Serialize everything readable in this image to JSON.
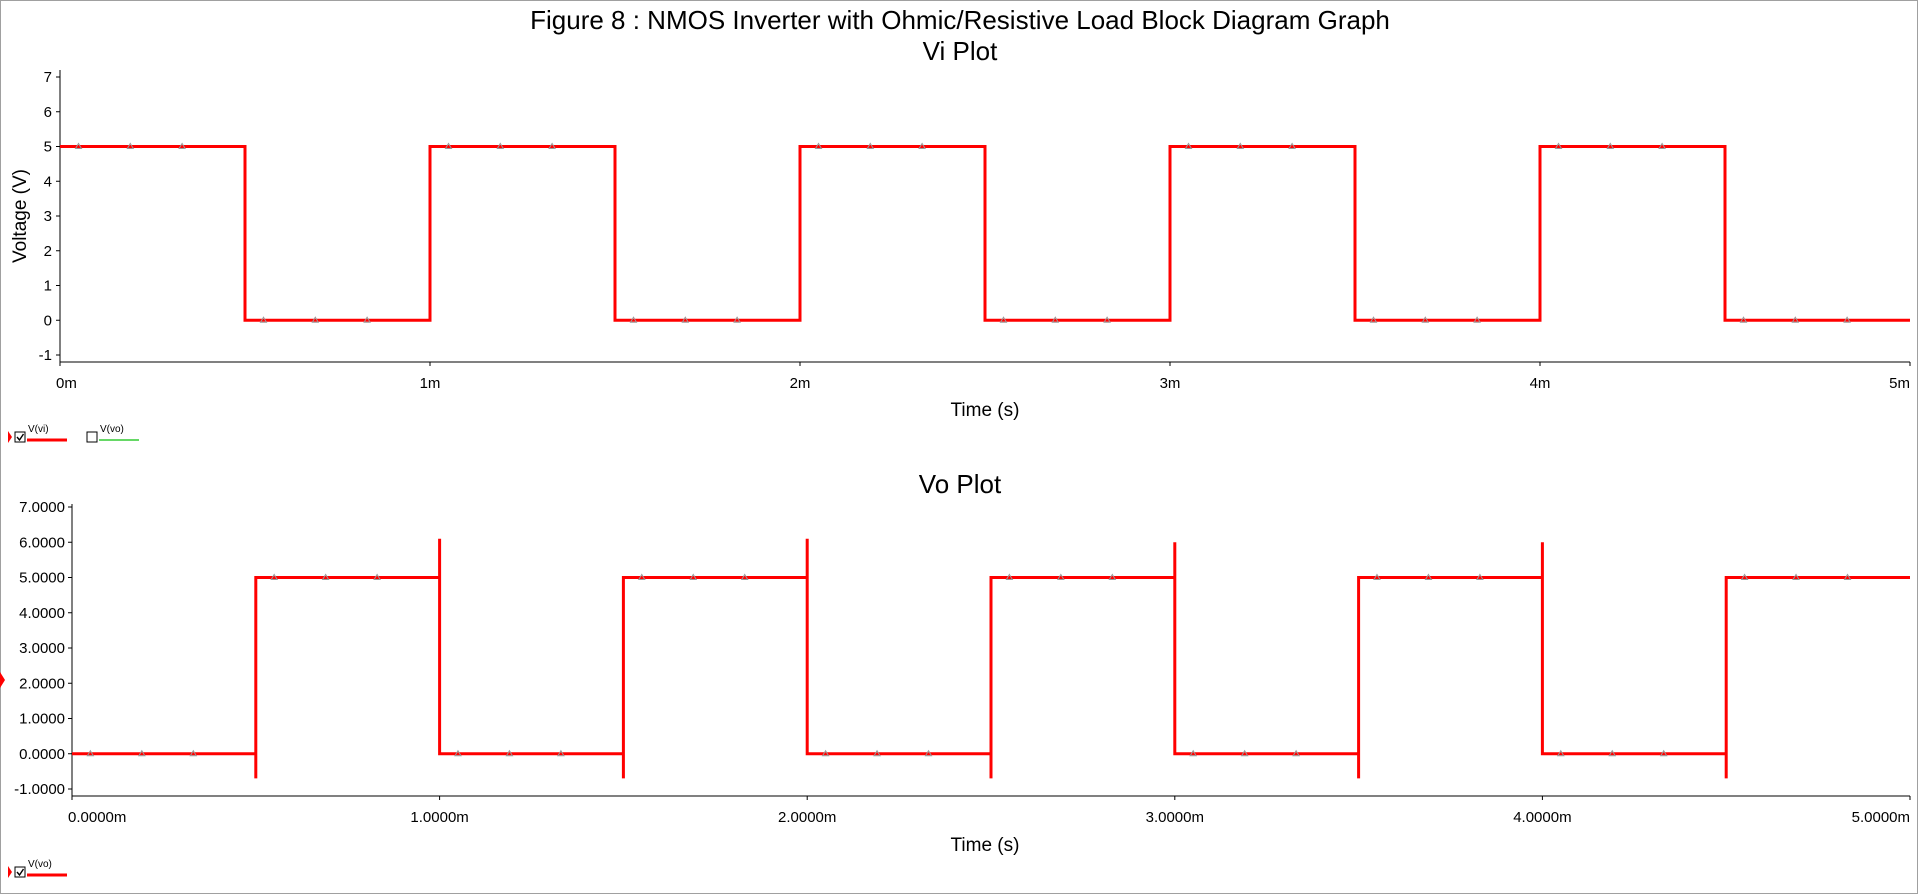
{
  "figure_title": "Figure 8 : NMOS Inverter with Ohmic/Resistive Load Block Diagram Graph",
  "colors": {
    "trace": "#ff0000",
    "vo_legend": "#33cc33",
    "axis": "#000000",
    "marker": "#999999"
  },
  "chart_data": [
    {
      "type": "line",
      "title": "Vi Plot",
      "xlabel": "Time (s)",
      "ylabel": "Voltage (V)",
      "xlim": [
        0,
        5
      ],
      "ylim": [
        -1,
        7
      ],
      "xticks": [
        0,
        1,
        2,
        3,
        4,
        5
      ],
      "xtick_labels": [
        "0m",
        "1m",
        "2m",
        "3m",
        "4m",
        "5m"
      ],
      "yticks": [
        -1,
        0,
        1,
        2,
        3,
        4,
        5,
        6,
        7
      ],
      "ytick_labels": [
        "-1",
        "0",
        "1",
        "2",
        "3",
        "4",
        "5",
        "6",
        "7"
      ],
      "legend": [
        {
          "name": "V(vi)",
          "checked": true
        },
        {
          "name": "V(vo)",
          "checked": false
        }
      ],
      "series": [
        {
          "name": "V(vi)",
          "x": [
            0,
            0.5,
            0.5,
            1.0,
            1.0,
            1.5,
            1.5,
            2.0,
            2.0,
            2.5,
            2.5,
            3.0,
            3.0,
            3.5,
            3.5,
            4.0,
            4.0,
            4.5,
            4.5,
            5.0
          ],
          "y": [
            5,
            5,
            0,
            0,
            5,
            5,
            0,
            0,
            5,
            5,
            0,
            0,
            5,
            5,
            0,
            0,
            5,
            5,
            0,
            0
          ]
        }
      ]
    },
    {
      "type": "line",
      "title": "Vo Plot",
      "xlabel": "Time (s)",
      "ylabel": "",
      "xlim": [
        0,
        5
      ],
      "ylim": [
        -1,
        7
      ],
      "xticks": [
        0,
        1,
        2,
        3,
        4,
        5
      ],
      "xtick_labels": [
        "0.0000m",
        "1.0000m",
        "2.0000m",
        "3.0000m",
        "4.0000m",
        "5.0000m"
      ],
      "yticks": [
        -1,
        0,
        1,
        2,
        3,
        4,
        5,
        6,
        7
      ],
      "ytick_labels": [
        "-1.0000",
        "0.0000",
        "1.0000",
        "2.0000",
        "3.0000",
        "4.0000",
        "5.0000",
        "6.0000",
        "7.0000"
      ],
      "legend": [
        {
          "name": "V(vo)",
          "checked": true
        }
      ],
      "series": [
        {
          "name": "V(vo)",
          "x": [
            0,
            0.5,
            0.5,
            0.5,
            0.5,
            1.0,
            1.0,
            1.0,
            1.0,
            1.5,
            1.5,
            1.5,
            1.5,
            2.0,
            2.0,
            2.0,
            2.0,
            2.5,
            2.5,
            2.5,
            2.5,
            3.0,
            3.0,
            3.0,
            3.0,
            3.5,
            3.5,
            3.5,
            3.5,
            4.0,
            4.0,
            4.0,
            4.0,
            4.5,
            4.5,
            4.5,
            4.5,
            5.0
          ],
          "y": [
            0,
            0,
            -0.7,
            5,
            5,
            5,
            6.1,
            0,
            0,
            0,
            -0.7,
            5,
            5,
            5,
            6.1,
            0,
            0,
            0,
            -0.7,
            5,
            5,
            5,
            6.0,
            0,
            0,
            0,
            -0.7,
            5,
            5,
            5,
            6.0,
            0,
            0,
            0,
            -0.7,
            5,
            5,
            5
          ]
        }
      ]
    }
  ]
}
